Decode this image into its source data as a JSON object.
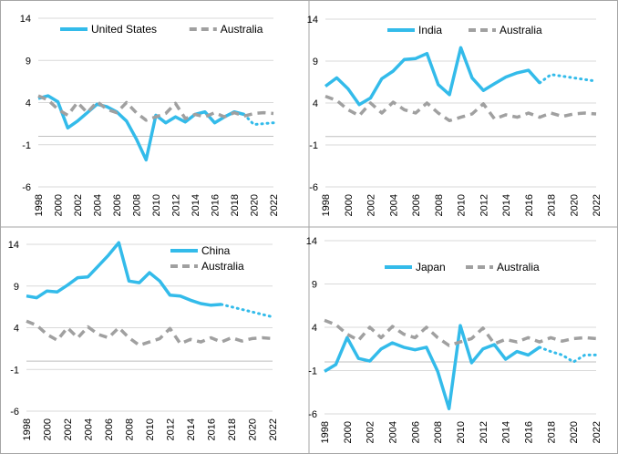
{
  "chart_data": [
    {
      "type": "line",
      "title": "",
      "xlabel": "",
      "ylabel": "",
      "ylim": [
        -6,
        14
      ],
      "yticks": [
        -6,
        -1,
        4,
        9,
        14
      ],
      "xlim": [
        1998,
        2022
      ],
      "xticks": [
        1998,
        2000,
        2002,
        2004,
        2006,
        2008,
        2010,
        2012,
        2014,
        2016,
        2018,
        2020,
        2022
      ],
      "grid": "horizontal",
      "legend": "top",
      "series": [
        {
          "name": "United States",
          "color": "#33bbea",
          "style": "solid",
          "x": [
            1998,
            1999,
            2000,
            2001,
            2002,
            2003,
            2004,
            2005,
            2006,
            2007,
            2008,
            2009,
            2010,
            2011,
            2012,
            2013,
            2014,
            2015,
            2016,
            2017,
            2018,
            2019
          ],
          "y": [
            4.5,
            4.8,
            4.1,
            1.0,
            1.8,
            2.8,
            3.8,
            3.5,
            2.9,
            1.8,
            -0.3,
            -2.8,
            2.5,
            1.6,
            2.3,
            1.7,
            2.6,
            2.9,
            1.6,
            2.3,
            2.9,
            2.6
          ],
          "forecast": {
            "x": [
              2019,
              2020,
              2021,
              2022
            ],
            "y": [
              2.6,
              1.4,
              1.5,
              1.6
            ]
          }
        },
        {
          "name": "Australia",
          "color": "#a0a0a0",
          "style": "dashed",
          "x": [
            1998,
            1999,
            2000,
            2001,
            2002,
            2003,
            2004,
            2005,
            2006,
            2007,
            2008,
            2009,
            2010,
            2011,
            2012,
            2013,
            2014,
            2015,
            2016,
            2017,
            2018,
            2019,
            2020,
            2021,
            2022
          ],
          "y": [
            4.8,
            4.3,
            3.2,
            2.5,
            4.0,
            2.8,
            4.1,
            3.2,
            2.8,
            4.0,
            2.8,
            1.9,
            2.3,
            2.7,
            3.9,
            2.1,
            2.6,
            2.3,
            2.8,
            2.3,
            2.8,
            2.4,
            2.7,
            2.8,
            2.7
          ]
        }
      ]
    },
    {
      "type": "line",
      "title": "",
      "xlabel": "",
      "ylabel": "",
      "ylim": [
        -6,
        14
      ],
      "yticks": [
        -6,
        -1,
        4,
        9,
        14
      ],
      "xlim": [
        1998,
        2022
      ],
      "xticks": [
        1998,
        2000,
        2002,
        2004,
        2006,
        2008,
        2010,
        2012,
        2014,
        2016,
        2018,
        2020,
        2022
      ],
      "grid": "horizontal",
      "legend": "top",
      "series": [
        {
          "name": "India",
          "color": "#33bbea",
          "style": "solid",
          "x": [
            1998,
            1999,
            2000,
            2001,
            2002,
            2003,
            2004,
            2005,
            2006,
            2007,
            2008,
            2009,
            2010,
            2011,
            2012,
            2013,
            2014,
            2015,
            2016,
            2017
          ],
          "y": [
            6.0,
            7.0,
            5.7,
            3.8,
            4.6,
            6.9,
            7.8,
            9.2,
            9.3,
            9.9,
            6.2,
            5.0,
            10.6,
            7.0,
            5.5,
            6.3,
            7.1,
            7.6,
            7.9,
            6.4
          ],
          "forecast": {
            "x": [
              2017,
              2018,
              2019,
              2020,
              2021,
              2022
            ],
            "y": [
              6.4,
              7.4,
              7.2,
              7.0,
              6.8,
              6.6
            ]
          }
        },
        {
          "name": "Australia",
          "color": "#a0a0a0",
          "style": "dashed",
          "x": [
            1998,
            1999,
            2000,
            2001,
            2002,
            2003,
            2004,
            2005,
            2006,
            2007,
            2008,
            2009,
            2010,
            2011,
            2012,
            2013,
            2014,
            2015,
            2016,
            2017,
            2018,
            2019,
            2020,
            2021,
            2022
          ],
          "y": [
            4.8,
            4.3,
            3.2,
            2.5,
            4.0,
            2.8,
            4.1,
            3.2,
            2.8,
            4.0,
            2.8,
            1.9,
            2.3,
            2.7,
            3.9,
            2.1,
            2.6,
            2.3,
            2.8,
            2.3,
            2.8,
            2.4,
            2.7,
            2.8,
            2.7
          ]
        }
      ]
    },
    {
      "type": "line",
      "title": "",
      "xlabel": "",
      "ylabel": "",
      "ylim": [
        -6,
        14
      ],
      "yticks": [
        -6,
        -1,
        4,
        9,
        14
      ],
      "xlim": [
        1998,
        2022
      ],
      "xticks": [
        1998,
        2000,
        2002,
        2004,
        2006,
        2008,
        2010,
        2012,
        2014,
        2016,
        2018,
        2020,
        2022
      ],
      "grid": "horizontal",
      "legend": "top-right",
      "series": [
        {
          "name": "China",
          "color": "#33bbea",
          "style": "solid",
          "x": [
            1998,
            1999,
            2000,
            2001,
            2002,
            2003,
            2004,
            2005,
            2006,
            2007,
            2008,
            2009,
            2010,
            2011,
            2012,
            2013,
            2014,
            2015,
            2016,
            2017
          ],
          "y": [
            7.8,
            7.6,
            8.4,
            8.3,
            9.1,
            10.0,
            10.1,
            11.4,
            12.7,
            14.2,
            9.6,
            9.4,
            10.6,
            9.6,
            7.9,
            7.8,
            7.3,
            6.9,
            6.7,
            6.8
          ],
          "forecast": {
            "x": [
              2017,
              2018,
              2019,
              2020,
              2021,
              2022
            ],
            "y": [
              6.8,
              6.5,
              6.2,
              5.9,
              5.6,
              5.3
            ]
          }
        },
        {
          "name": "Australia",
          "color": "#a0a0a0",
          "style": "dashed",
          "x": [
            1998,
            1999,
            2000,
            2001,
            2002,
            2003,
            2004,
            2005,
            2006,
            2007,
            2008,
            2009,
            2010,
            2011,
            2012,
            2013,
            2014,
            2015,
            2016,
            2017,
            2018,
            2019,
            2020,
            2021,
            2022
          ],
          "y": [
            4.8,
            4.3,
            3.2,
            2.5,
            4.0,
            2.8,
            4.1,
            3.2,
            2.8,
            4.0,
            2.8,
            1.9,
            2.3,
            2.7,
            3.9,
            2.1,
            2.6,
            2.3,
            2.8,
            2.3,
            2.8,
            2.4,
            2.7,
            2.8,
            2.7
          ]
        }
      ]
    },
    {
      "type": "line",
      "title": "",
      "xlabel": "",
      "ylabel": "",
      "ylim": [
        -6,
        14
      ],
      "yticks": [
        -6,
        -1,
        4,
        9,
        14
      ],
      "xlim": [
        1998,
        2022
      ],
      "xticks": [
        1998,
        2000,
        2002,
        2004,
        2006,
        2008,
        2010,
        2012,
        2014,
        2016,
        2018,
        2020,
        2022
      ],
      "grid": "horizontal",
      "legend": "top",
      "series": [
        {
          "name": "Japan",
          "color": "#33bbea",
          "style": "solid",
          "x": [
            1998,
            1999,
            2000,
            2001,
            2002,
            2003,
            2004,
            2005,
            2006,
            2007,
            2008,
            2009,
            2010,
            2011,
            2012,
            2013,
            2014,
            2015,
            2016,
            2017
          ],
          "y": [
            -1.1,
            -0.3,
            2.8,
            0.4,
            0.1,
            1.5,
            2.2,
            1.7,
            1.4,
            1.7,
            -1.1,
            -5.4,
            4.2,
            -0.1,
            1.5,
            2.0,
            0.3,
            1.2,
            0.8,
            1.7
          ],
          "forecast": {
            "x": [
              2017,
              2018,
              2019,
              2020,
              2021,
              2022
            ],
            "y": [
              1.7,
              1.2,
              0.8,
              0.0,
              0.8,
              0.8
            ]
          }
        },
        {
          "name": "Australia",
          "color": "#a0a0a0",
          "style": "dashed",
          "x": [
            1998,
            1999,
            2000,
            2001,
            2002,
            2003,
            2004,
            2005,
            2006,
            2007,
            2008,
            2009,
            2010,
            2011,
            2012,
            2013,
            2014,
            2015,
            2016,
            2017,
            2018,
            2019,
            2020,
            2021,
            2022
          ],
          "y": [
            4.8,
            4.3,
            3.2,
            2.5,
            4.0,
            2.8,
            4.1,
            3.2,
            2.8,
            4.0,
            2.8,
            1.9,
            2.3,
            2.7,
            3.9,
            2.1,
            2.6,
            2.3,
            2.8,
            2.3,
            2.8,
            2.4,
            2.7,
            2.8,
            2.7
          ]
        }
      ]
    }
  ]
}
